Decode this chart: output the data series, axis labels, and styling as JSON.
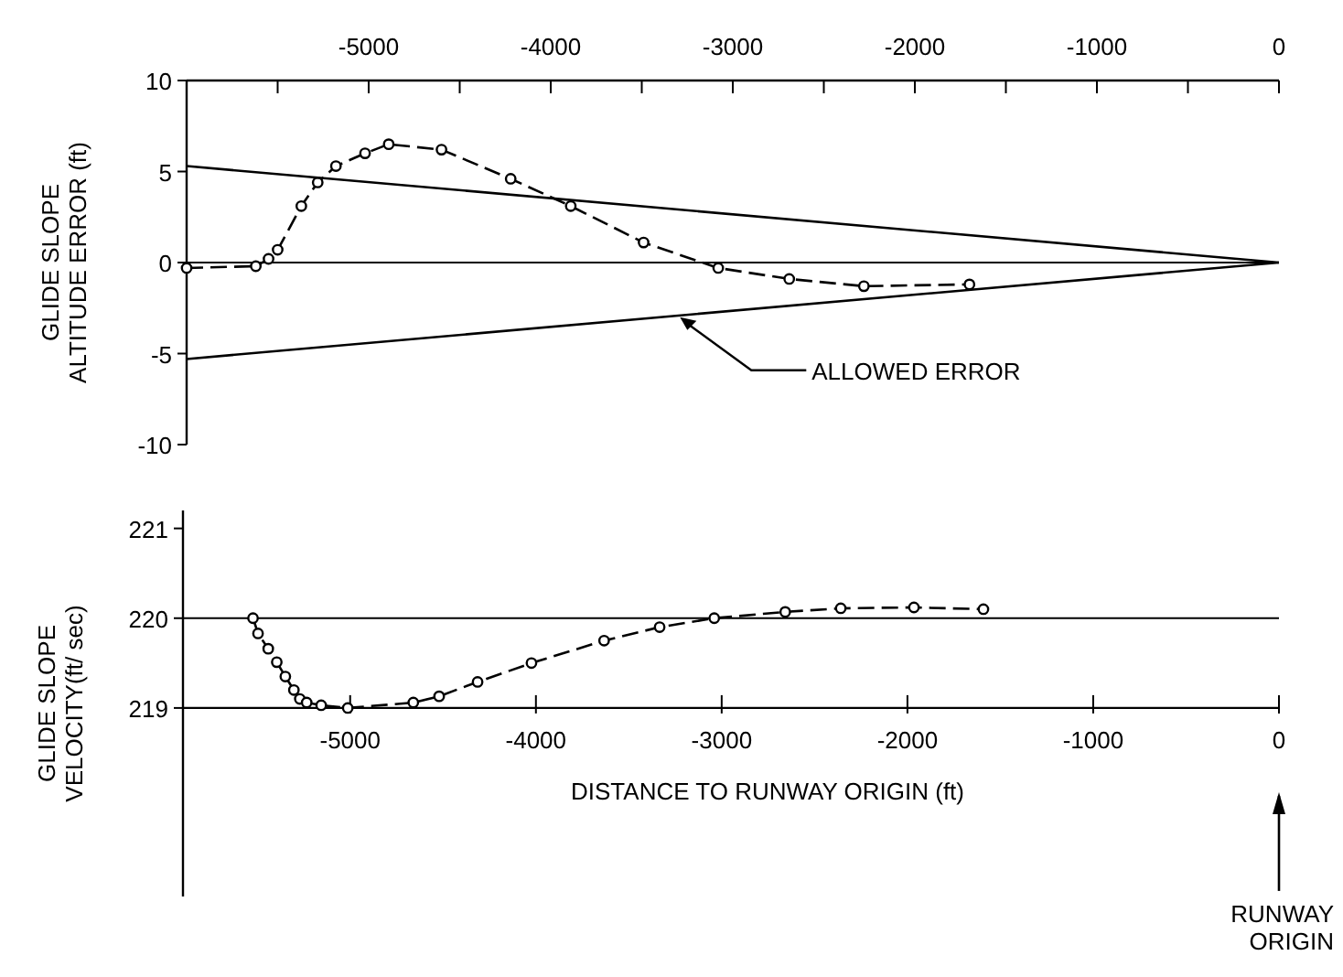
{
  "chart_data": [
    {
      "type": "line",
      "ylabel": "GLIDE SLOPE\nALTITUDE ERROR (ft)",
      "xlim": [
        -6000,
        0
      ],
      "xticks": [
        {
          "value": -5500,
          "label": null
        },
        -5000,
        {
          "value": -4500,
          "label": null
        },
        -4000,
        {
          "value": -3500,
          "label": null
        },
        -3000,
        {
          "value": -2500,
          "label": null
        },
        -2000,
        {
          "value": -1500,
          "label": null
        },
        -1000,
        {
          "value": -500,
          "label": null
        },
        0
      ],
      "ylim": [
        -10,
        10
      ],
      "yticks": [
        -10,
        -5,
        0,
        5,
        10
      ],
      "grid": false,
      "series": [
        {
          "color": "#000000",
          "marker": "circle",
          "line_style": "dashed",
          "x": [
            -6000,
            -5620,
            -5550,
            -5500,
            -5370,
            -5280,
            -5180,
            -5020,
            -4890,
            -4600,
            -4220,
            -3890,
            -3490,
            -3080,
            -2690,
            -2280,
            -1700
          ],
          "values": [
            -0.3,
            -0.2,
            0.2,
            0.7,
            3.1,
            4.4,
            5.3,
            6.0,
            6.5,
            6.2,
            4.6,
            3.1,
            1.1,
            -0.3,
            -0.9,
            -1.3,
            -1.2
          ]
        },
        {
          "color": "#000000",
          "marker": "none",
          "line_style": "solid",
          "x": [
            -6000,
            0
          ],
          "values": [
            5.3,
            0
          ]
        },
        {
          "color": "#000000",
          "marker": "none",
          "line_style": "solid",
          "x": [
            -6000,
            0
          ],
          "values": [
            -5.3,
            0
          ]
        }
      ],
      "ref_lines": [
        {
          "axis": "y",
          "value": 0,
          "color": "#000000"
        }
      ],
      "annotations": [
        {
          "text": "ALLOWED ERROR",
          "x": -3300,
          "y": -2.9
        }
      ]
    },
    {
      "type": "line",
      "ylabel": "GLIDE SLOPE\nVELOCITY(ft/ sec)",
      "xlabel": "DISTANCE TO RUNWAY ORIGIN (ft)",
      "xlim": [
        -5900,
        0
      ],
      "xticks": [
        -5000,
        -4000,
        -3000,
        -2000,
        -1000,
        0
      ],
      "ylim": [
        216.9,
        221.2
      ],
      "yticks": [
        219,
        220,
        221
      ],
      "grid": false,
      "series": [
        {
          "color": "#000000",
          "marker": "circle",
          "line_style": "dashed",
          "x": [
            -5523,
            -5496,
            -5441,
            -5395,
            -5349,
            -5303,
            -5271,
            -5234,
            -5156,
            -5013,
            -4660,
            -4521,
            -4314,
            -4024,
            -3633,
            -3334,
            -3040,
            -2658,
            -2359,
            -1965,
            -1591
          ],
          "values": [
            220.0,
            219.83,
            219.66,
            219.51,
            219.35,
            219.2,
            219.1,
            219.06,
            219.03,
            219.0,
            219.06,
            219.13,
            219.29,
            219.5,
            219.75,
            219.9,
            220.0,
            220.07,
            220.11,
            220.12,
            220.1
          ]
        }
      ],
      "ref_lines": [
        {
          "axis": "y",
          "value": 220,
          "color": "#000000"
        }
      ],
      "annotations": [
        "RUNWAY\nORIGIN"
      ]
    }
  ]
}
